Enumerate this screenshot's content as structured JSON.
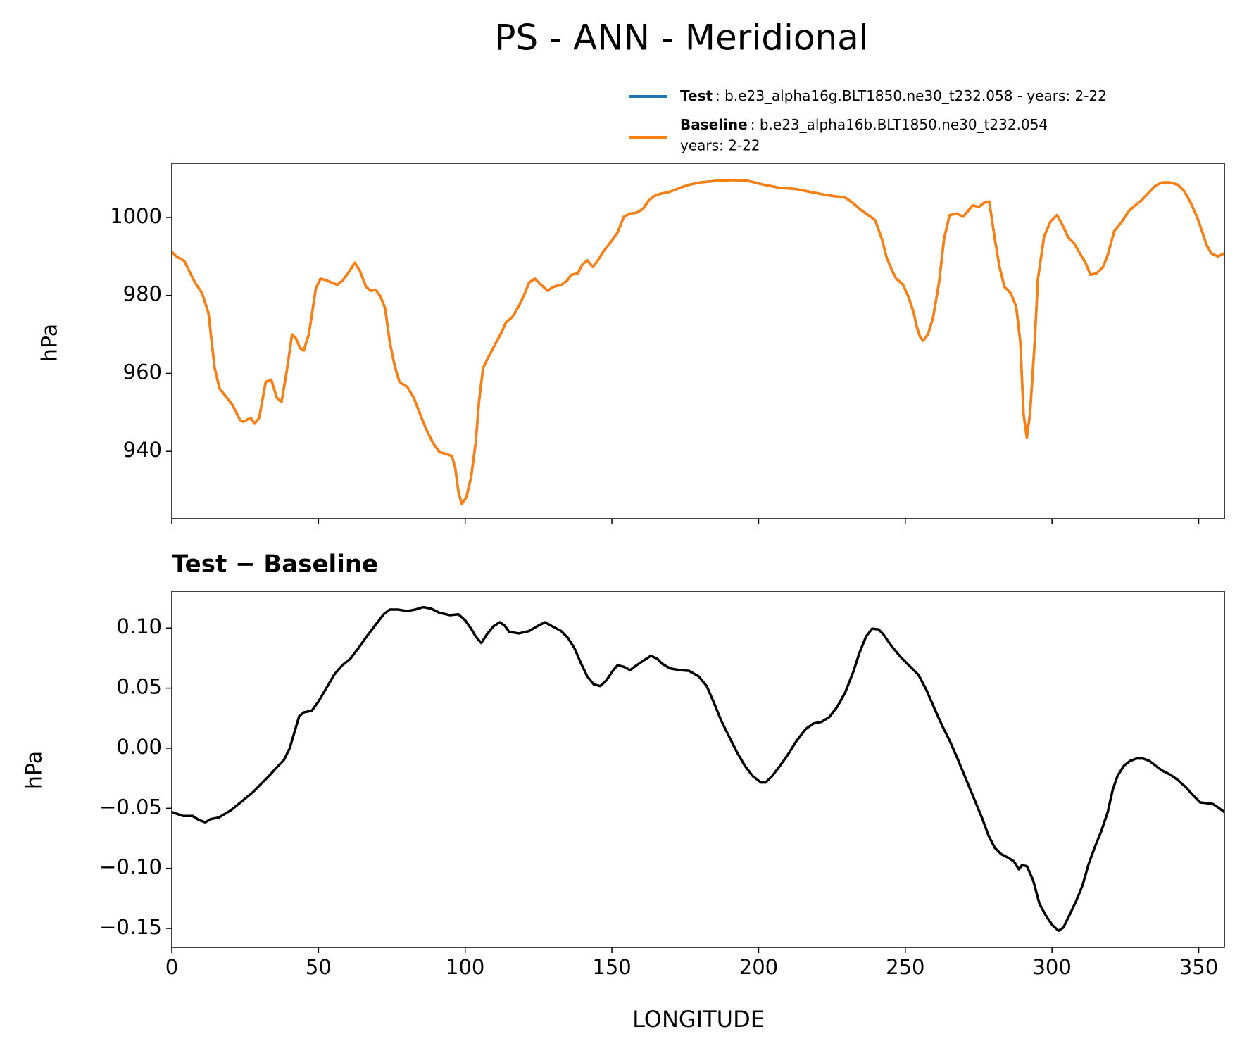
{
  "chart_data": [
    {
      "type": "line",
      "title": "PS - ANN - Meridional",
      "ylabel": "hPa",
      "xlim": [
        0,
        358.75
      ],
      "xticks": [
        0,
        50,
        100,
        150,
        200,
        250,
        300,
        350
      ],
      "ylim": [
        922.7,
        1013.9
      ],
      "yticks": [
        940,
        960,
        980,
        1000
      ],
      "x": [
        0,
        1.6,
        4.3,
        7.9,
        10.3,
        12.5,
        14.6,
        16.3,
        18.2,
        20.6,
        23.3,
        24.4,
        26.9,
        28.2,
        29.8,
        32.0,
        33.9,
        35.8,
        37.4,
        39.1,
        41.0,
        42.3,
        43.7,
        45.0,
        46.7,
        49.1,
        50.7,
        52.6,
        54.5,
        56.4,
        58.3,
        60.8,
        62.4,
        64.1,
        66.2,
        67.8,
        69.5,
        71.1,
        72.7,
        74.3,
        76.0,
        77.6,
        80.3,
        82.5,
        84.6,
        86.8,
        89.0,
        91.2,
        93.3,
        95.5,
        96.6,
        97.7,
        98.8,
        100.4,
        102.0,
        103.6,
        104.7,
        106.1,
        108.0,
        110.1,
        112.3,
        113.9,
        116.1,
        118.3,
        119.9,
        121.8,
        123.7,
        125.9,
        128.1,
        130.0,
        132.7,
        134.6,
        136.2,
        138.4,
        140.0,
        141.6,
        143.5,
        145.4,
        147.0,
        149.2,
        151.9,
        154.1,
        156.2,
        158.4,
        160.6,
        162.5,
        164.4,
        166.6,
        169.3,
        171.5,
        173.9,
        176.3,
        180.1,
        185.6,
        191.0,
        196.4,
        201.8,
        207.3,
        212.7,
        218.1,
        223.5,
        229.5,
        232.2,
        234.4,
        236.6,
        238.5,
        239.8,
        242.0,
        243.6,
        245.3,
        246.9,
        249.1,
        251.0,
        252.8,
        253.9,
        255.0,
        256.1,
        257.7,
        259.4,
        261.5,
        263.2,
        265.1,
        267.5,
        269.7,
        271.3,
        272.9,
        275.1,
        276.7,
        278.6,
        280.5,
        282.1,
        283.8,
        285.9,
        287.8,
        289.2,
        290.3,
        291.4,
        292.5,
        294.1,
        295.2,
        297.3,
        299.5,
        301.7,
        303.6,
        305.5,
        307.6,
        309.8,
        311.4,
        313.1,
        315.2,
        317.4,
        319.0,
        321.2,
        323.9,
        326.1,
        328.3,
        330.4,
        332.6,
        335.3,
        337.5,
        340.2,
        342.9,
        345.1,
        347.3,
        349.5,
        351.1,
        352.7,
        354.3,
        356.5,
        358.7
      ],
      "series": [
        {
          "name": "Test",
          "description": ": b.e23_alpha16g.BLT1850.ne30_t232.058 - years: 2-22",
          "color": "#1f77b4",
          "values": [
            991.2,
            990.0,
            988.8,
            983.3,
            980.6,
            975.5,
            961.4,
            956.1,
            954.3,
            952.0,
            948.0,
            947.6,
            948.6,
            947.1,
            948.6,
            957.8,
            958.4,
            953.7,
            952.7,
            960.2,
            970.0,
            969.0,
            966.5,
            965.9,
            970.0,
            981.8,
            984.3,
            983.9,
            983.3,
            982.7,
            983.9,
            986.5,
            988.4,
            986.3,
            982.2,
            981.2,
            981.4,
            979.8,
            976.7,
            968.0,
            961.8,
            957.8,
            956.5,
            953.7,
            949.6,
            945.5,
            942.2,
            939.8,
            939.4,
            938.8,
            935.7,
            929.6,
            926.5,
            928.2,
            933.3,
            942.4,
            952.7,
            961.4,
            964.3,
            967.3,
            970.4,
            973.1,
            974.5,
            977.3,
            979.8,
            983.3,
            984.3,
            982.7,
            981.2,
            982.2,
            982.7,
            983.7,
            985.3,
            985.7,
            988.0,
            989.0,
            987.3,
            989.2,
            991.2,
            993.3,
            996.1,
            1000.2,
            1001.0,
            1001.2,
            1002.2,
            1004.3,
            1005.5,
            1006.1,
            1006.5,
            1007.1,
            1007.8,
            1008.4,
            1009.0,
            1009.4,
            1009.6,
            1009.4,
            1008.4,
            1007.6,
            1007.3,
            1006.5,
            1005.7,
            1005.1,
            1003.7,
            1002.2,
            1001.0,
            1000.0,
            999.2,
            994.5,
            989.8,
            986.7,
            984.3,
            982.9,
            979.8,
            975.7,
            972.0,
            969.4,
            968.4,
            970.0,
            974.1,
            983.3,
            994.5,
            1000.6,
            1001.0,
            1000.2,
            1001.6,
            1003.1,
            1002.7,
            1003.7,
            1004.1,
            994.5,
            987.3,
            982.2,
            980.6,
            977.1,
            968.0,
            949.6,
            943.5,
            949.6,
            968.0,
            984.3,
            995.1,
            999.0,
            1000.6,
            998.0,
            994.9,
            993.3,
            990.4,
            988.4,
            985.3,
            985.7,
            987.3,
            990.4,
            996.5,
            999.0,
            1001.6,
            1003.1,
            1004.3,
            1006.1,
            1008.2,
            1009.0,
            1009.0,
            1008.4,
            1006.7,
            1003.7,
            1000.0,
            996.5,
            992.9,
            990.8,
            990.0,
            990.8
          ]
        },
        {
          "name": "Baseline",
          "description": [
            ": b.e23_alpha16b.BLT1850.ne30_t232.054",
            "years: 2-22"
          ],
          "color": "#ff7f0e",
          "values": [
            991.2,
            990.0,
            988.8,
            983.3,
            980.6,
            975.5,
            961.4,
            956.1,
            954.3,
            952.0,
            948.0,
            947.6,
            948.6,
            947.1,
            948.6,
            957.8,
            958.4,
            953.7,
            952.7,
            960.2,
            970.0,
            969.0,
            966.5,
            965.9,
            970.0,
            981.8,
            984.3,
            983.9,
            983.3,
            982.7,
            983.9,
            986.5,
            988.4,
            986.3,
            982.2,
            981.2,
            981.4,
            979.8,
            976.7,
            968.0,
            961.8,
            957.8,
            956.5,
            953.7,
            949.6,
            945.5,
            942.2,
            939.8,
            939.4,
            938.8,
            935.7,
            929.6,
            926.5,
            928.2,
            933.3,
            942.4,
            952.7,
            961.4,
            964.3,
            967.3,
            970.4,
            973.1,
            974.5,
            977.3,
            979.8,
            983.3,
            984.3,
            982.7,
            981.2,
            982.2,
            982.7,
            983.7,
            985.3,
            985.7,
            988.0,
            989.0,
            987.3,
            989.2,
            991.2,
            993.3,
            996.1,
            1000.2,
            1001.0,
            1001.2,
            1002.2,
            1004.3,
            1005.5,
            1006.1,
            1006.5,
            1007.1,
            1007.8,
            1008.4,
            1009.0,
            1009.4,
            1009.6,
            1009.4,
            1008.4,
            1007.6,
            1007.3,
            1006.5,
            1005.7,
            1005.1,
            1003.7,
            1002.2,
            1001.0,
            1000.0,
            999.2,
            994.5,
            989.8,
            986.7,
            984.3,
            982.9,
            979.8,
            975.7,
            972.0,
            969.4,
            968.4,
            970.0,
            974.1,
            983.3,
            994.5,
            1000.6,
            1001.0,
            1000.2,
            1001.6,
            1003.1,
            1002.7,
            1003.7,
            1004.1,
            994.5,
            987.3,
            982.2,
            980.6,
            977.1,
            968.0,
            949.6,
            943.5,
            949.6,
            968.0,
            984.3,
            995.1,
            999.0,
            1000.6,
            998.0,
            994.9,
            993.3,
            990.4,
            988.4,
            985.3,
            985.7,
            987.3,
            990.4,
            996.5,
            999.0,
            1001.6,
            1003.1,
            1004.3,
            1006.1,
            1008.2,
            1009.0,
            1009.0,
            1008.4,
            1006.7,
            1003.7,
            1000.0,
            996.5,
            992.9,
            990.8,
            990.0,
            990.8
          ]
        }
      ]
    },
    {
      "type": "line",
      "subtitle": "Test − Baseline",
      "ylabel": "hPa",
      "xlabel": "LONGITUDE",
      "xlim": [
        0,
        358.75
      ],
      "xticks": [
        0,
        50,
        100,
        150,
        200,
        250,
        300,
        350
      ],
      "ylim": [
        -0.1658,
        0.1306
      ],
      "yticks": [
        {
          "value": -0.15,
          "label": "−0.15"
        },
        {
          "value": -0.1,
          "label": "−0.10"
        },
        {
          "value": -0.05,
          "label": "−0.05"
        },
        {
          "value": 0,
          "label": "0.00"
        },
        {
          "value": 0.05,
          "label": "0.05"
        },
        {
          "value": 0.1,
          "label": "0.10"
        }
      ],
      "x": [
        0,
        3.8,
        7.1,
        9.2,
        11.4,
        13.3,
        16.0,
        20.1,
        24.1,
        27.7,
        30.4,
        33.1,
        35.5,
        38.2,
        40.2,
        41.8,
        43.4,
        45.0,
        47.7,
        49.9,
        52.6,
        55.3,
        58.1,
        60.8,
        63.5,
        66.2,
        69.5,
        72.2,
        74.3,
        77.0,
        80.3,
        83.0,
        85.7,
        88.4,
        91.2,
        94.7,
        97.7,
        100.1,
        102.0,
        103.6,
        105.5,
        107.4,
        109.6,
        111.8,
        113.4,
        115.0,
        118.3,
        121.8,
        124.5,
        127.2,
        129.7,
        132.7,
        135.1,
        137.3,
        139.4,
        141.6,
        143.8,
        146.0,
        148.1,
        150.3,
        151.9,
        154.1,
        156.2,
        158.4,
        161.2,
        163.3,
        165.5,
        167.1,
        169.9,
        173.1,
        176.3,
        179.6,
        182.3,
        185.0,
        187.2,
        189.9,
        192.6,
        195.3,
        198.0,
        200.8,
        202.4,
        204.6,
        207.3,
        210.0,
        212.7,
        216.0,
        218.7,
        221.4,
        224.1,
        226.8,
        229.5,
        232.2,
        234.4,
        236.6,
        238.7,
        240.9,
        242.5,
        245.3,
        248.5,
        251.2,
        254.5,
        257.2,
        259.9,
        262.6,
        265.3,
        268.0,
        270.8,
        273.5,
        276.2,
        278.4,
        280.5,
        282.7,
        284.9,
        287.0,
        288.7,
        289.7,
        291.4,
        293.5,
        295.7,
        297.9,
        300.1,
        302.2,
        303.9,
        306.0,
        308.2,
        310.4,
        312.5,
        314.7,
        316.9,
        319.0,
        320.7,
        322.3,
        324.5,
        326.6,
        328.8,
        331.0,
        333.2,
        335.3,
        337.5,
        340.2,
        342.9,
        345.6,
        348.3,
        350.5,
        352.7,
        354.8,
        356.5,
        358.7
      ],
      "series": [
        {
          "name": "Test − Baseline",
          "color": "#000000",
          "values": [
            -0.0531,
            -0.0564,
            -0.0564,
            -0.0597,
            -0.0617,
            -0.059,
            -0.0577,
            -0.0517,
            -0.0438,
            -0.0365,
            -0.0298,
            -0.0232,
            -0.0166,
            -0.0099,
            0,
            0.0133,
            0.0265,
            0.0298,
            0.0312,
            0.0385,
            0.0497,
            0.061,
            0.069,
            0.0743,
            0.0829,
            0.0922,
            0.1028,
            0.1114,
            0.1154,
            0.1154,
            0.1141,
            0.1154,
            0.1174,
            0.1161,
            0.1127,
            0.1107,
            0.1114,
            0.1061,
            0.0995,
            0.0928,
            0.0875,
            0.0948,
            0.1014,
            0.1048,
            0.1021,
            0.0968,
            0.0955,
            0.0975,
            0.1014,
            0.1048,
            0.1014,
            0.0975,
            0.0915,
            0.0829,
            0.071,
            0.0597,
            0.0531,
            0.0517,
            0.0564,
            0.0643,
            0.069,
            0.0677,
            0.065,
            0.069,
            0.0736,
            0.0769,
            0.0743,
            0.0703,
            0.0663,
            0.065,
            0.0643,
            0.0597,
            0.0517,
            0.0365,
            0.0232,
            0.0099,
            -0.0033,
            -0.0146,
            -0.0232,
            -0.0285,
            -0.0285,
            -0.0232,
            -0.0146,
            -0.0053,
            0.0053,
            0.0159,
            0.0206,
            0.0219,
            0.0259,
            0.0345,
            0.0464,
            0.063,
            0.0796,
            0.0928,
            0.0995,
            0.0988,
            0.0948,
            0.0849,
            0.0756,
            0.069,
            0.061,
            0.0484,
            0.0332,
            0.0186,
            0.0053,
            -0.0099,
            -0.0265,
            -0.0424,
            -0.0584,
            -0.0729,
            -0.0829,
            -0.0882,
            -0.0909,
            -0.0942,
            -0.1008,
            -0.0975,
            -0.0981,
            -0.1094,
            -0.1293,
            -0.1393,
            -0.1472,
            -0.1519,
            -0.1492,
            -0.1386,
            -0.1273,
            -0.1141,
            -0.0962,
            -0.0816,
            -0.0683,
            -0.0531,
            -0.0345,
            -0.0232,
            -0.0146,
            -0.0106,
            -0.0086,
            -0.0086,
            -0.0106,
            -0.0146,
            -0.0186,
            -0.0219,
            -0.0265,
            -0.0325,
            -0.0398,
            -0.0451,
            -0.0457,
            -0.0464,
            -0.0491,
            -0.0531
          ]
        }
      ]
    }
  ]
}
